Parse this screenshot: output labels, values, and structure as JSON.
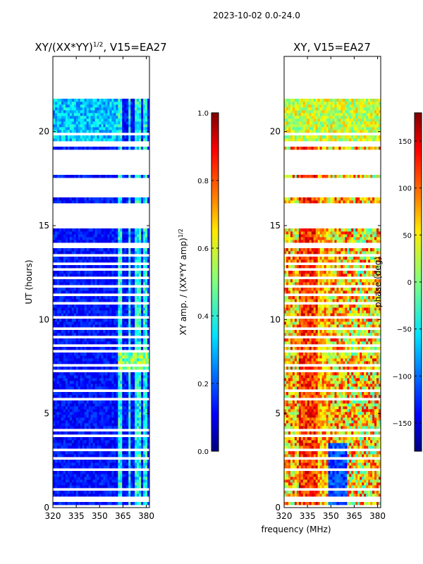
{
  "chart_data": {
    "type": "heatmap",
    "suptitle": "2023-10-02 0.0-24.0",
    "xlabel": "frequency (MHz)",
    "panels": [
      {
        "title": "XY/(XX*YY)",
        "title_exponent": "1/2",
        "title_suffix": ", V15=EA27",
        "ylabel": "UT (hours)",
        "xlim": [
          320,
          382
        ],
        "ylim": [
          0,
          24
        ],
        "xticks": [
          "320",
          "335",
          "350",
          "365",
          "380"
        ],
        "xtick_values": [
          320,
          335,
          350,
          365,
          380
        ],
        "yticks": [
          "0",
          "5",
          "10",
          "15",
          "20"
        ],
        "ytick_values": [
          0,
          5,
          10,
          15,
          20
        ],
        "colorbar": {
          "label": "XY amp. / (XX*YY amp)",
          "label_exponent": "1/2",
          "range": [
            0.0,
            1.0
          ],
          "ticks": [
            "0.0",
            "0.2",
            "0.4",
            "0.6",
            "0.8",
            "1.0"
          ],
          "tick_values": [
            0,
            0.2,
            0.4,
            0.6,
            0.8,
            1.0
          ]
        }
      },
      {
        "title": "XY, V15=EA27",
        "ylabel": "",
        "xlim": [
          320,
          382
        ],
        "ylim": [
          0,
          24
        ],
        "xticks": [
          "320",
          "335",
          "350",
          "365",
          "380"
        ],
        "xtick_values": [
          320,
          335,
          350,
          365,
          380
        ],
        "yticks": [
          "0",
          "5",
          "10",
          "15",
          "20"
        ],
        "ytick_values": [
          0,
          5,
          10,
          15,
          20
        ],
        "colorbar": {
          "label": "phase (deg)",
          "range": [
            -180,
            180
          ],
          "ticks": [
            "−150",
            "−100",
            "−50",
            "0",
            "50",
            "100",
            "150"
          ],
          "tick_values": [
            -150,
            -100,
            -50,
            0,
            50,
            100,
            150
          ]
        }
      }
    ],
    "data_gaps_hours": [
      [
        0.0,
        0.15
      ],
      [
        0.35,
        0.55
      ],
      [
        0.9,
        1.05
      ],
      [
        1.45,
        1.55
      ],
      [
        1.75,
        1.85
      ],
      [
        1.95,
        2.05
      ],
      [
        2.6,
        2.7
      ],
      [
        3.05,
        3.15
      ],
      [
        3.4,
        3.5
      ],
      [
        3.7,
        3.95
      ],
      [
        4.1,
        4.2
      ],
      [
        4.45,
        4.55
      ],
      [
        4.9,
        5.0
      ],
      [
        5.35,
        5.45
      ],
      [
        5.75,
        5.85
      ],
      [
        6.15,
        6.25
      ],
      [
        6.55,
        6.65
      ],
      [
        6.85,
        6.95
      ],
      [
        7.2,
        7.3
      ],
      [
        7.55,
        7.65
      ],
      [
        8.3,
        8.45
      ],
      [
        8.6,
        8.7
      ],
      [
        9.0,
        9.1
      ],
      [
        9.5,
        9.6
      ],
      [
        10.1,
        10.2
      ],
      [
        10.45,
        10.55
      ],
      [
        10.85,
        10.95
      ],
      [
        11.3,
        11.4
      ],
      [
        11.75,
        11.85
      ],
      [
        12.15,
        12.25
      ],
      [
        12.6,
        12.7
      ],
      [
        12.95,
        13.05
      ],
      [
        13.4,
        13.5
      ],
      [
        13.85,
        14.05
      ],
      [
        14.35,
        14.45
      ],
      [
        14.8,
        16.15
      ],
      [
        16.55,
        17.5
      ],
      [
        17.65,
        19.1
      ],
      [
        19.25,
        19.45
      ],
      [
        19.85,
        19.95
      ],
      [
        21.75,
        24.0
      ]
    ],
    "blue_colormap_stops": [
      [
        0,
        "#00007f"
      ],
      [
        0.11,
        "#0000ff"
      ],
      [
        0.125,
        "#0000ff"
      ],
      [
        0.34,
        "#00e0ff"
      ],
      [
        0.35,
        "#00e5f5"
      ],
      [
        0.5,
        "#7fff7f"
      ],
      [
        0.65,
        "#ffea00"
      ],
      [
        0.75,
        "#ff8000"
      ],
      [
        0.89,
        "#ff0000"
      ],
      [
        1,
        "#7f0000"
      ]
    ]
  }
}
